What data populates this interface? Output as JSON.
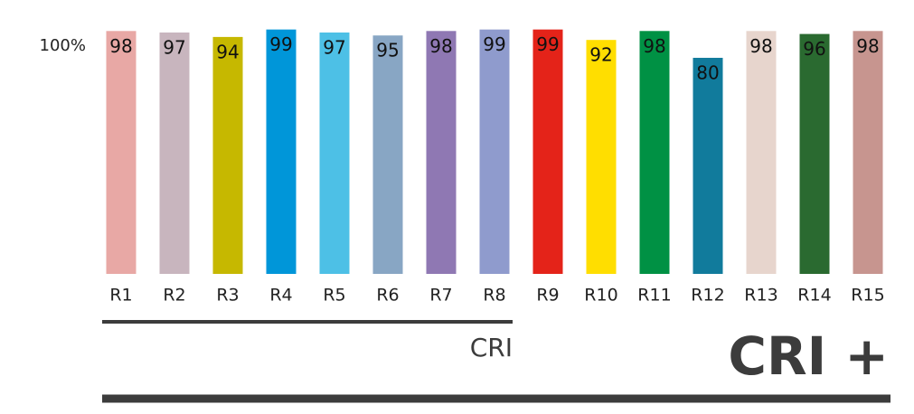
{
  "chart_data": {
    "type": "bar",
    "categories": [
      "R1",
      "R2",
      "R3",
      "R4",
      "R5",
      "R6",
      "R7",
      "R8",
      "R9",
      "R10",
      "R11",
      "R12",
      "R13",
      "R14",
      "R15"
    ],
    "values": [
      98,
      97,
      94,
      99,
      97,
      95,
      98,
      99,
      99,
      92,
      98,
      80,
      98,
      96,
      98
    ],
    "colors": [
      "#e8a8a5",
      "#c8b5be",
      "#c6b800",
      "#0096d9",
      "#4dc0e6",
      "#88a6c4",
      "#8f78b3",
      "#8f9bcd",
      "#e42319",
      "#ffde00",
      "#009144",
      "#117b9c",
      "#e7d5cd",
      "#2a6a30",
      "#c7958f"
    ],
    "ylim": [
      -65,
      100
    ],
    "yticks": [
      {
        "value": 100,
        "label": "100%"
      }
    ],
    "annotations": [
      "CRI",
      "CRI +"
    ]
  }
}
